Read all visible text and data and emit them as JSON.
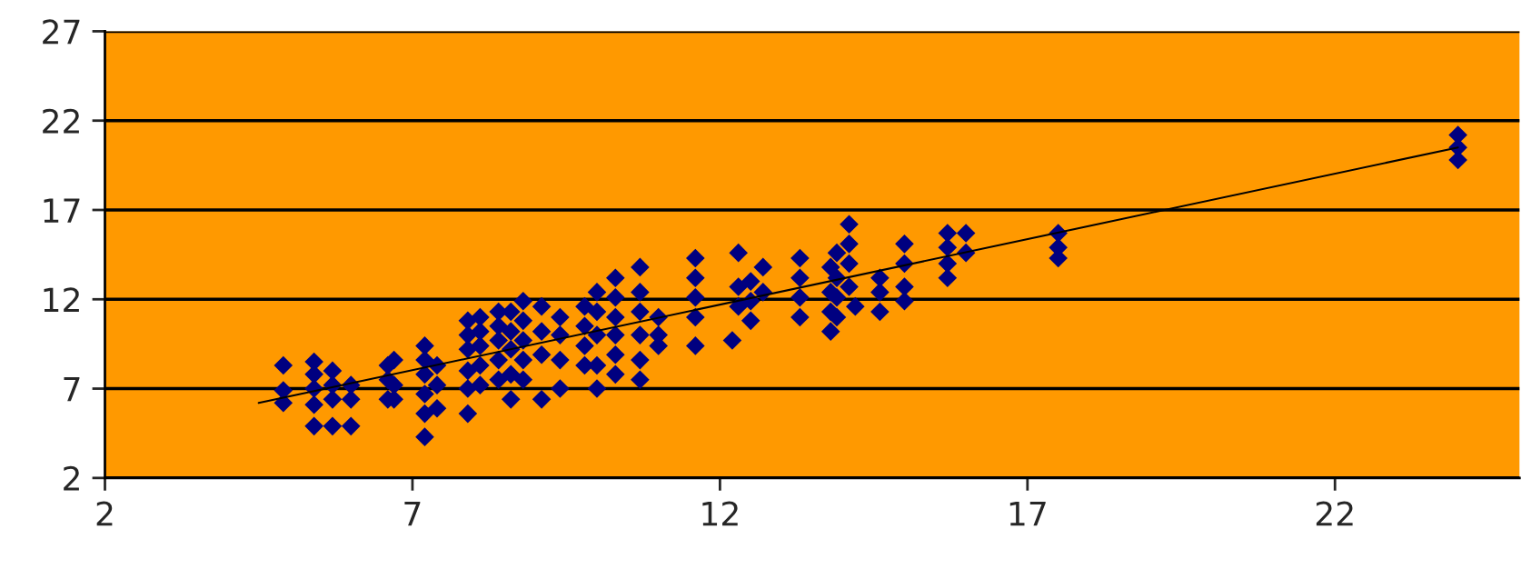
{
  "chart_data": {
    "type": "scatter",
    "xlim": [
      2,
      25
    ],
    "ylim": [
      2,
      27
    ],
    "xticks": [
      2,
      7,
      12,
      17,
      22
    ],
    "yticks": [
      2,
      7,
      12,
      17,
      22,
      27
    ],
    "grid": "y",
    "series": [
      {
        "color": "#000080",
        "marker": "diamond",
        "x": [
          4.9,
          4.9,
          4.9,
          5.4,
          5.4,
          5.4,
          5.4,
          5.4,
          5.7,
          5.7,
          5.7,
          5.7,
          6.0,
          6.0,
          6.0,
          6.6,
          6.6,
          6.6,
          6.7,
          6.7,
          6.7,
          7.2,
          7.2,
          7.2,
          7.2,
          7.2,
          7.2,
          7.4,
          7.4,
          7.4,
          7.9,
          7.9,
          7.9,
          7.9,
          7.9,
          7.9,
          8.1,
          8.1,
          8.1,
          8.1,
          8.1,
          8.4,
          8.4,
          8.4,
          8.4,
          8.4,
          8.6,
          8.6,
          8.6,
          8.6,
          8.6,
          8.8,
          8.8,
          8.8,
          8.8,
          8.8,
          9.1,
          9.1,
          9.1,
          9.1,
          9.4,
          9.4,
          9.4,
          9.4,
          9.8,
          9.8,
          9.8,
          9.8,
          10.0,
          10.0,
          10.0,
          10.0,
          10.0,
          10.3,
          10.3,
          10.3,
          10.3,
          10.3,
          10.3,
          10.7,
          10.7,
          10.7,
          10.7,
          10.7,
          10.7,
          11.0,
          11.0,
          11.0,
          11.6,
          11.6,
          11.6,
          11.6,
          11.6,
          12.2,
          12.3,
          12.3,
          12.3,
          12.5,
          12.5,
          12.5,
          12.7,
          12.7,
          13.3,
          13.3,
          13.3,
          13.3,
          13.8,
          13.8,
          13.8,
          13.8,
          13.9,
          13.9,
          13.9,
          13.9,
          14.1,
          14.1,
          14.1,
          14.1,
          14.2,
          14.6,
          14.6,
          14.6,
          15.0,
          15.0,
          15.0,
          15.0,
          15.7,
          15.7,
          15.7,
          15.7,
          16.0,
          16.0,
          17.5,
          17.5,
          17.5,
          24.0,
          24.0,
          24.0
        ],
        "values": [
          8.3,
          6.9,
          6.2,
          8.5,
          7.8,
          7.0,
          6.1,
          4.9,
          8.0,
          7.2,
          6.4,
          4.9,
          7.2,
          6.4,
          4.9,
          8.3,
          7.5,
          6.4,
          8.6,
          7.2,
          6.4,
          9.4,
          8.6,
          7.8,
          6.7,
          5.6,
          4.3,
          8.3,
          7.2,
          5.9,
          10.8,
          10.0,
          9.2,
          8.0,
          7.0,
          5.6,
          11.0,
          10.2,
          9.4,
          8.3,
          7.2,
          11.3,
          10.5,
          9.7,
          8.6,
          7.5,
          11.3,
          10.2,
          9.2,
          7.8,
          6.4,
          11.9,
          10.8,
          9.7,
          8.6,
          7.5,
          11.6,
          10.2,
          8.9,
          6.4,
          11.0,
          10.0,
          8.6,
          7.0,
          11.6,
          10.5,
          9.4,
          8.3,
          12.4,
          11.3,
          10.0,
          8.3,
          7.0,
          13.2,
          12.1,
          11.0,
          10.0,
          8.9,
          7.8,
          13.8,
          12.4,
          11.3,
          10.0,
          8.6,
          7.5,
          11.0,
          10.0,
          9.4,
          14.3,
          13.2,
          12.1,
          11.0,
          9.4,
          9.7,
          14.6,
          12.7,
          11.6,
          13.0,
          11.9,
          10.8,
          13.8,
          12.4,
          14.3,
          13.2,
          12.1,
          11.0,
          13.8,
          12.4,
          11.3,
          10.2,
          14.6,
          13.2,
          12.1,
          11.0,
          16.2,
          15.1,
          14.0,
          12.7,
          11.6,
          13.2,
          12.4,
          11.3,
          15.1,
          14.0,
          12.7,
          11.9,
          15.7,
          14.9,
          14.0,
          13.2,
          15.7,
          14.6,
          15.7,
          14.9,
          14.3,
          21.2,
          20.5,
          19.8
        ]
      },
      {
        "type": "line",
        "color": "#000000",
        "marker": "none",
        "x": [
          4.5,
          24.0
        ],
        "values": [
          6.2,
          20.5
        ]
      }
    ]
  }
}
